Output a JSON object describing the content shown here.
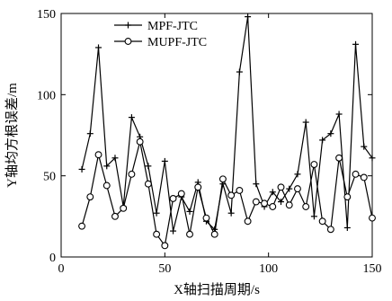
{
  "chart_data": {
    "type": "line",
    "title": "",
    "xlabel": "X轴扫描周期/s",
    "ylabel": "Y轴均方根误差/m",
    "xlim": [
      0,
      150
    ],
    "ylim": [
      0,
      150
    ],
    "xticks": [
      0,
      50,
      100,
      150
    ],
    "yticks": [
      0,
      50,
      100,
      150
    ],
    "grid": false,
    "legend_position": "top-left",
    "series": [
      {
        "name": "MPF-JTC",
        "marker": "plus",
        "color": "#000000",
        "x": [
          10,
          14,
          18,
          22,
          26,
          30,
          34,
          38,
          42,
          46,
          50,
          54,
          58,
          62,
          66,
          70,
          74,
          78,
          82,
          86,
          90,
          94,
          98,
          102,
          106,
          110,
          114,
          118,
          122,
          126,
          130,
          134,
          138,
          142,
          146,
          150
        ],
        "y": [
          54,
          76,
          129,
          56,
          61,
          31,
          86,
          74,
          56,
          27,
          59,
          16,
          37,
          28,
          46,
          22,
          17,
          45,
          27,
          114,
          148,
          45,
          31,
          40,
          34,
          42,
          51,
          83,
          25,
          72,
          76,
          88,
          18,
          131,
          68,
          61
        ]
      },
      {
        "name": "MUPF-JTC",
        "marker": "circle",
        "color": "#000000",
        "x": [
          10,
          14,
          18,
          22,
          26,
          30,
          34,
          38,
          42,
          46,
          50,
          54,
          58,
          62,
          66,
          70,
          74,
          78,
          82,
          86,
          90,
          94,
          98,
          102,
          106,
          110,
          114,
          118,
          122,
          126,
          130,
          134,
          138,
          142,
          146,
          150
        ],
        "y": [
          19,
          37,
          63,
          44,
          25,
          30,
          51,
          71,
          45,
          14,
          7,
          36,
          39,
          14,
          43,
          24,
          14,
          48,
          38,
          41,
          22,
          34,
          33,
          31,
          43,
          32,
          42,
          31,
          57,
          22,
          17,
          61,
          37,
          51,
          49,
          24
        ]
      }
    ]
  }
}
